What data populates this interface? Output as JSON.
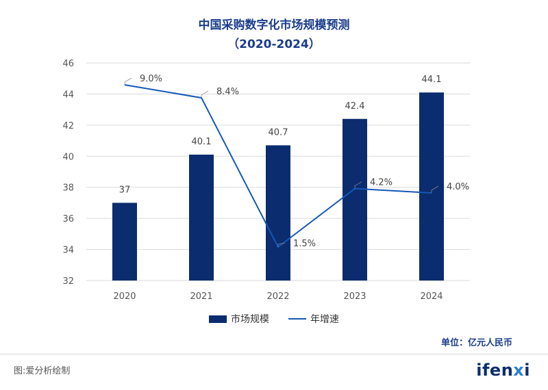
{
  "title_line1": "中国采购数字化市场规模预测",
  "title_line2": "（2020-2024）",
  "legend": {
    "bar_label": "市场规模",
    "line_label": "年增速"
  },
  "unit_text": "单位：亿元人民币",
  "footer_note": "图:爱分析绘制",
  "logo": {
    "main": "ifen",
    "x": "x",
    "tail": "i"
  },
  "colors": {
    "bar": "#0b2c6e",
    "line": "#1458b8",
    "grid": "#d9d9d9",
    "title": "#1a3c8c"
  },
  "chart_data": {
    "type": "bar",
    "categories": [
      "2020",
      "2021",
      "2022",
      "2023",
      "2024"
    ],
    "ylim": [
      32,
      46
    ],
    "yticks": [
      32,
      34,
      36,
      38,
      40,
      42,
      44,
      46
    ],
    "grid": true,
    "legend_position": "bottom-center",
    "series": [
      {
        "name": "市场规模",
        "type": "bar",
        "values": [
          37,
          40.1,
          40.7,
          42.4,
          44.1
        ],
        "labels": [
          "37",
          "40.1",
          "40.7",
          "42.4",
          "44.1"
        ]
      },
      {
        "name": "年增速",
        "type": "line",
        "values": [
          9.0,
          8.4,
          1.5,
          4.2,
          4.0
        ],
        "labels": [
          "9.0%",
          "8.4%",
          "1.5%",
          "4.2%",
          "4.0%"
        ],
        "secondary_axis_hidden": true
      }
    ]
  }
}
